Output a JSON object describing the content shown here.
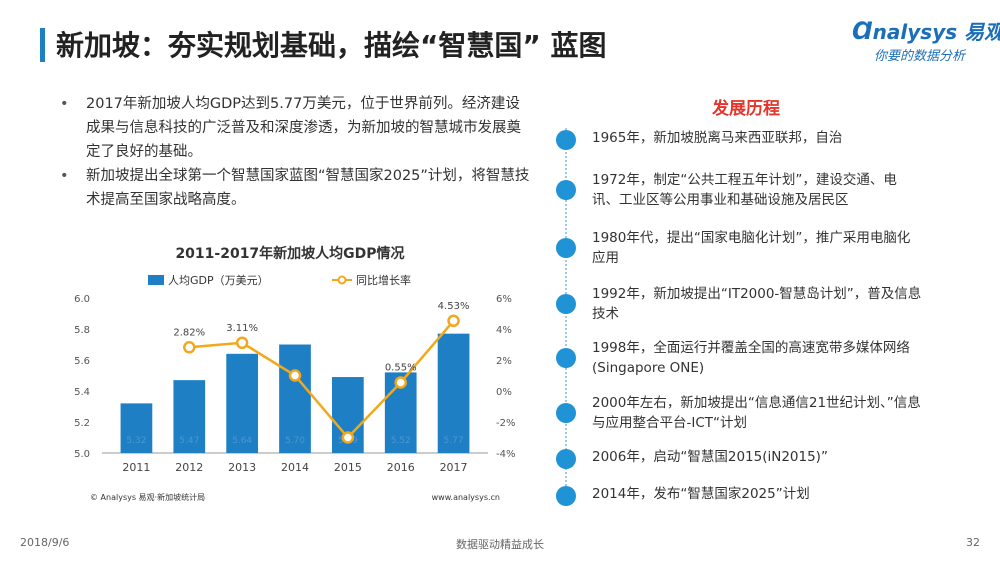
{
  "header": {
    "title": "新加坡：夯实规划基础，描绘“智慧国” 蓝图",
    "logo_main": "nalysys 易观",
    "logo_sub": "你要的数据分析"
  },
  "bullets": [
    "2017年新加坡人均GDP达到5.77万美元，位于世界前列。经济建设成果与信息科技的广泛普及和深度渗透，为新加坡的智慧城市发展奠定了良好的基础。",
    "新加坡提出全球第一个智慧国家蓝图“智慧国家2025”计划，将智慧技术提高至国家战略高度。"
  ],
  "timeline": {
    "title": "发展历程",
    "items": [
      "1965年，新加坡脱离马来西亚联邦，自治",
      "1972年，制定“公共工程五年计划”，建设交通、电讯、工业区等公用事业和基础设施及居民区",
      "1980年代，提出“国家电脑化计划”，推广采用电脑化应用",
      "1992年，新加坡提出“IT2000-智慧岛计划”，普及信息技术",
      "1998年，全面运行并覆盖全国的高速宽带多媒体网络(Singapore ONE)",
      "2000年左右，新加坡提出“信息通信21世纪计划、”信息与应用整合平台-ICT“计划",
      "2006年，启动“智慧国2015(iN2015)”",
      "2014年，发布“智慧国家2025”计划"
    ]
  },
  "chart_data": {
    "type": "bar",
    "title": "2011-2017年新加坡人均GDP情况",
    "categories": [
      "2011",
      "2012",
      "2013",
      "2014",
      "2015",
      "2016",
      "2017"
    ],
    "series": [
      {
        "name": "人均GDP（万美元）",
        "type": "bar",
        "color": "#1f7fc4",
        "values": [
          5.32,
          5.47,
          5.64,
          5.7,
          5.49,
          5.52,
          5.77
        ],
        "labels": [
          "5.32",
          "5.47",
          "5.64",
          "5.70",
          "5.49",
          "5.52",
          "5.77"
        ]
      },
      {
        "name": "同比增长率",
        "type": "line",
        "color": "#f2a81d",
        "values": [
          null,
          2.82,
          3.11,
          1.0,
          -3.0,
          0.55,
          4.53
        ],
        "labels": [
          "",
          "2.82%",
          "3.11%",
          "",
          "",
          "0.55%",
          "4.53%"
        ]
      }
    ],
    "y_left": {
      "ylim": [
        5.0,
        6.0
      ],
      "ticks": [
        "5.0",
        "5.2",
        "5.4",
        "5.6",
        "5.8",
        "6.0"
      ]
    },
    "y_right": {
      "ylim": [
        -4,
        6
      ],
      "ticks": [
        "-4%",
        "-2%",
        "0%",
        "2%",
        "4%",
        "6%"
      ]
    },
    "legend": "top",
    "source": "© Analysys 易观·新加坡统计局",
    "website": "www.analysys.cn"
  },
  "footer": {
    "date": "2018/9/6",
    "slogan": "数据驱动精益成长",
    "page": "32"
  }
}
